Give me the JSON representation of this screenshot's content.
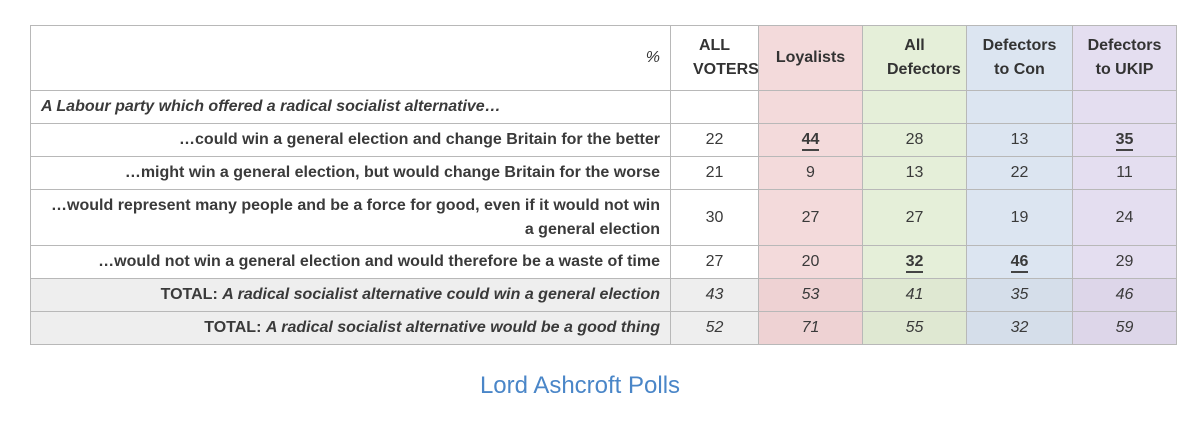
{
  "chart_data": {
    "type": "table",
    "unit_label": "%",
    "columns": [
      {
        "label": "ALL VOTERS",
        "color": "#ffffff"
      },
      {
        "label": "Loyalists",
        "color": "#f3dadb"
      },
      {
        "label": "All Defectors",
        "color": "#e5efd9"
      },
      {
        "label": "Defectors to Con",
        "color": "#dce5f1"
      },
      {
        "label": "Defectors to UKIP",
        "color": "#e4def0"
      }
    ],
    "intro": "A Labour party which offered a radical socialist alternative…",
    "rows": [
      {
        "label": "…could win a general election and change Britain for the better",
        "values": [
          "22",
          "44",
          "28",
          "13",
          "35"
        ]
      },
      {
        "label": "…might win a general election, but would change Britain for the worse",
        "values": [
          "21",
          "9",
          "13",
          "22",
          "11"
        ]
      },
      {
        "label": "…would represent many people and be a force for good, even if it would not win a general election",
        "values": [
          "30",
          "27",
          "27",
          "19",
          "24"
        ]
      },
      {
        "label": "…would not win a general election and would therefore be a waste of time",
        "values": [
          "27",
          "20",
          "32",
          "46",
          "29"
        ]
      }
    ],
    "highlighted_cells": [
      [
        0,
        1
      ],
      [
        0,
        4
      ],
      [
        3,
        2
      ],
      [
        3,
        3
      ]
    ],
    "totals": [
      {
        "prefix": "TOTAL:",
        "label": "A radical socialist alternative could win a general election",
        "values": [
          "43",
          "53",
          "41",
          "35",
          "46"
        ]
      },
      {
        "prefix": "TOTAL:",
        "label": "A radical socialist alternative would be a good thing",
        "values": [
          "52",
          "71",
          "55",
          "32",
          "59"
        ]
      }
    ]
  },
  "source": "Lord Ashcroft Polls"
}
